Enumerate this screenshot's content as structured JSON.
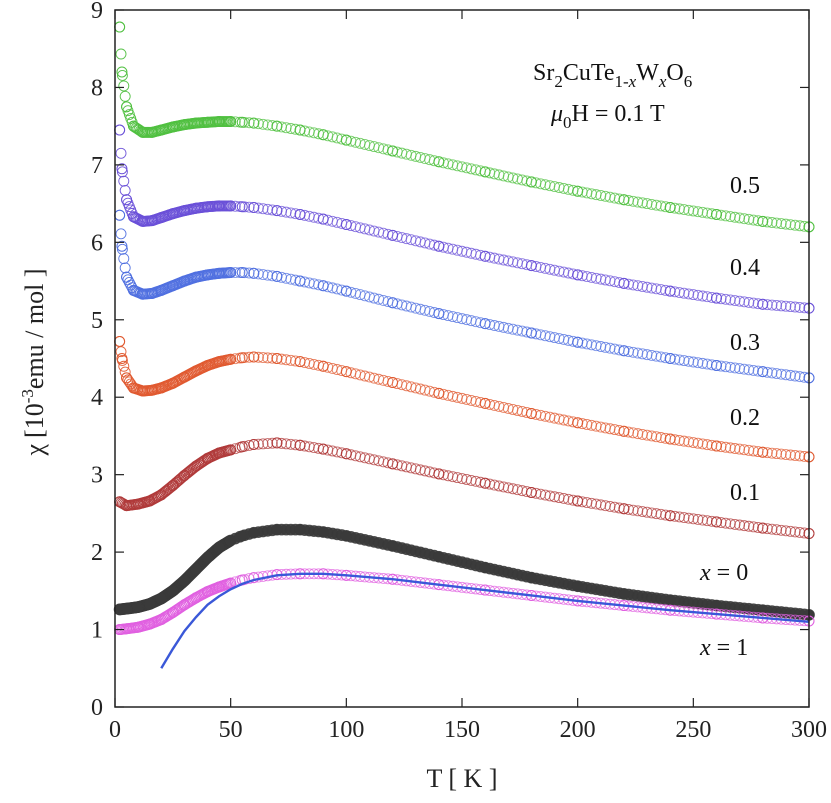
{
  "chart_data": {
    "type": "scatter",
    "title": "",
    "xlabel": "T [ K ]",
    "ylabel_parts": {
      "chi": "χ",
      "open": "[10",
      "exp": "-3",
      "rest": "emu / mol ]"
    },
    "xlim": [
      0,
      300
    ],
    "ylim": [
      0,
      9
    ],
    "xticks": [
      0,
      50,
      100,
      150,
      200,
      250,
      300
    ],
    "yticks": [
      0,
      1,
      2,
      3,
      4,
      5,
      6,
      7,
      8,
      9
    ],
    "xtick_labels": [
      "0",
      "50",
      "100",
      "150",
      "200",
      "250",
      "300"
    ],
    "ytick_labels": [
      "0",
      "1",
      "2",
      "3",
      "4",
      "5",
      "6",
      "7",
      "8",
      "9"
    ],
    "annotation": {
      "formula": {
        "p1": "Sr",
        "s1": "2",
        "p2": "CuTe",
        "s2": "1-",
        "s3": "x",
        "p3": "W",
        "s4": "x",
        "p4": "O",
        "s5": "6"
      },
      "field": {
        "mu": "μ",
        "sub": "0",
        "rest": "H = 0.1 T"
      }
    },
    "series": [
      {
        "name": "x = 0",
        "label_main": "x",
        "label_rest": " = 0",
        "color": "#3a3a3a",
        "filled": true,
        "x": [
          2,
          5,
          10,
          15,
          20,
          25,
          30,
          35,
          40,
          45,
          50,
          55,
          60,
          70,
          80,
          90,
          100,
          120,
          140,
          160,
          180,
          200,
          220,
          240,
          260,
          280,
          300
        ],
        "y": [
          1.26,
          1.27,
          1.29,
          1.33,
          1.4,
          1.5,
          1.63,
          1.78,
          1.93,
          2.06,
          2.15,
          2.21,
          2.25,
          2.29,
          2.29,
          2.26,
          2.21,
          2.08,
          1.94,
          1.8,
          1.67,
          1.56,
          1.46,
          1.38,
          1.31,
          1.25,
          1.19
        ]
      },
      {
        "name": "x = 1",
        "label_main": "x",
        "label_rest": " = 1",
        "color": "#e060e0",
        "filled": false,
        "x": [
          2,
          5,
          10,
          15,
          20,
          25,
          30,
          35,
          40,
          45,
          50,
          55,
          60,
          70,
          80,
          90,
          100,
          120,
          140,
          160,
          180,
          200,
          220,
          240,
          260,
          280,
          300
        ],
        "y": [
          1.0,
          1.01,
          1.03,
          1.07,
          1.13,
          1.22,
          1.32,
          1.41,
          1.49,
          1.55,
          1.6,
          1.64,
          1.67,
          1.71,
          1.72,
          1.72,
          1.7,
          1.65,
          1.58,
          1.51,
          1.44,
          1.37,
          1.31,
          1.25,
          1.2,
          1.15,
          1.11
        ]
      },
      {
        "name": "0.1",
        "label_main": "0.1",
        "label_rest": "",
        "color": "#b03a3a",
        "filled": false,
        "x": [
          2,
          5,
          10,
          15,
          20,
          25,
          30,
          35,
          40,
          45,
          50,
          55,
          60,
          70,
          80,
          90,
          100,
          120,
          140,
          160,
          180,
          200,
          220,
          240,
          260,
          280,
          300
        ],
        "y": [
          2.65,
          2.6,
          2.62,
          2.66,
          2.74,
          2.86,
          2.99,
          3.11,
          3.21,
          3.28,
          3.32,
          3.36,
          3.39,
          3.41,
          3.38,
          3.33,
          3.27,
          3.14,
          3.01,
          2.89,
          2.77,
          2.66,
          2.56,
          2.47,
          2.39,
          2.31,
          2.24
        ]
      },
      {
        "name": "0.2",
        "label_main": "0.2",
        "label_rest": "",
        "color": "#e05a30",
        "filled": false,
        "x": [
          2,
          3,
          5,
          8,
          12,
          16,
          20,
          25,
          30,
          35,
          40,
          45,
          50,
          55,
          60,
          70,
          80,
          90,
          100,
          120,
          140,
          160,
          180,
          200,
          220,
          240,
          260,
          280,
          300
        ],
        "y": [
          4.72,
          4.5,
          4.25,
          4.12,
          4.08,
          4.09,
          4.12,
          4.18,
          4.26,
          4.34,
          4.41,
          4.46,
          4.49,
          4.51,
          4.52,
          4.5,
          4.46,
          4.4,
          4.33,
          4.19,
          4.05,
          3.92,
          3.79,
          3.67,
          3.56,
          3.46,
          3.37,
          3.29,
          3.23
        ]
      },
      {
        "name": "0.3",
        "label_main": "0.3",
        "label_rest": "",
        "color": "#5070e0",
        "filled": false,
        "x": [
          2,
          3,
          5,
          8,
          12,
          16,
          20,
          25,
          30,
          35,
          40,
          45,
          50,
          55,
          60,
          70,
          80,
          90,
          100,
          120,
          140,
          160,
          180,
          200,
          220,
          240,
          260,
          280,
          300
        ],
        "y": [
          6.35,
          5.95,
          5.55,
          5.38,
          5.33,
          5.34,
          5.38,
          5.44,
          5.5,
          5.55,
          5.58,
          5.6,
          5.61,
          5.61,
          5.6,
          5.56,
          5.5,
          5.44,
          5.37,
          5.22,
          5.08,
          4.95,
          4.83,
          4.71,
          4.6,
          4.5,
          4.41,
          4.33,
          4.25
        ]
      },
      {
        "name": "0.4",
        "label_main": "0.4",
        "label_rest": "",
        "color": "#6a50d8",
        "filled": false,
        "x": [
          2,
          3,
          5,
          8,
          12,
          16,
          20,
          25,
          30,
          35,
          40,
          45,
          50,
          55,
          60,
          70,
          80,
          90,
          100,
          120,
          140,
          160,
          180,
          200,
          220,
          240,
          260,
          280,
          300
        ],
        "y": [
          7.45,
          6.95,
          6.55,
          6.33,
          6.27,
          6.28,
          6.32,
          6.37,
          6.41,
          6.44,
          6.46,
          6.47,
          6.47,
          6.46,
          6.45,
          6.41,
          6.36,
          6.3,
          6.23,
          6.09,
          5.95,
          5.82,
          5.7,
          5.58,
          5.47,
          5.37,
          5.28,
          5.2,
          5.15
        ]
      },
      {
        "name": "0.5",
        "label_main": "0.5",
        "label_rest": "",
        "color": "#50c040",
        "filled": false,
        "x": [
          2,
          3,
          5,
          8,
          12,
          16,
          20,
          25,
          30,
          35,
          40,
          45,
          50,
          55,
          60,
          70,
          80,
          90,
          100,
          120,
          140,
          160,
          180,
          200,
          220,
          240,
          260,
          280,
          300
        ],
        "y": [
          8.78,
          8.2,
          7.75,
          7.5,
          7.42,
          7.42,
          7.45,
          7.49,
          7.52,
          7.54,
          7.55,
          7.56,
          7.56,
          7.55,
          7.54,
          7.5,
          7.45,
          7.39,
          7.32,
          7.18,
          7.04,
          6.91,
          6.78,
          6.66,
          6.55,
          6.45,
          6.36,
          6.27,
          6.2
        ]
      }
    ],
    "fit_curve": {
      "name": "fit",
      "color": "#3a58d8",
      "x": [
        20,
        25,
        30,
        35,
        40,
        45,
        50,
        55,
        60,
        70,
        80,
        90,
        100,
        120,
        140,
        160,
        180,
        200,
        220,
        240,
        260,
        280,
        300
      ],
      "y": [
        0.5,
        0.75,
        0.98,
        1.16,
        1.32,
        1.43,
        1.52,
        1.59,
        1.64,
        1.7,
        1.72,
        1.72,
        1.7,
        1.65,
        1.58,
        1.51,
        1.44,
        1.37,
        1.31,
        1.25,
        1.2,
        1.15,
        1.1
      ]
    }
  }
}
